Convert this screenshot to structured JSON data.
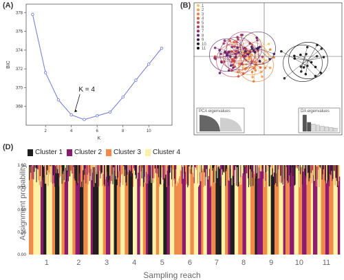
{
  "panels": {
    "a": "(A)",
    "b": "(B)",
    "d": "(D)"
  },
  "chart_data": [
    {
      "type": "line",
      "panel": "(A)",
      "xlabel": "K",
      "ylabel": "BIC",
      "x": [
        1,
        2,
        3,
        4,
        5,
        6,
        7,
        8,
        9,
        10,
        11
      ],
      "y": [
        377.8,
        371.6,
        368.7,
        367.1,
        366.6,
        367.0,
        367.4,
        369.0,
        370.8,
        372.5,
        374.2
      ],
      "xlim": [
        0.5,
        11.8
      ],
      "ylim": [
        366.0,
        378.9
      ],
      "xticks": [
        2,
        4,
        6,
        8,
        10
      ],
      "yticks": [
        368,
        370,
        372,
        374,
        376,
        378
      ],
      "annotation": "K = 4",
      "color": "#6b78d8"
    },
    {
      "type": "scatter",
      "panel": "(B)",
      "legend": [
        "1",
        "2",
        "3",
        "4",
        "5",
        "6",
        "7",
        "8",
        "9",
        "10",
        "11"
      ],
      "legend_colors": [
        "#f5c66a",
        "#f2a054",
        "#e8823d",
        "#dc5e35",
        "#c94a4a",
        "#b0385a",
        "#8c2a6e",
        "#60206c",
        "#3d1a55",
        "#202020",
        "#0a0a0a"
      ],
      "insets": {
        "pca_title": "PCA eigenvalues",
        "da_title": "DA eigenvalues"
      },
      "da_eigenvalues": [
        1.0,
        0.55,
        0.45,
        0.38,
        0.32,
        0.28,
        0.24,
        0.2
      ]
    },
    {
      "type": "bar",
      "panel": "(D)",
      "stacked": true,
      "series": [
        {
          "name": "Cluster 1",
          "color": "#1e1e1e"
        },
        {
          "name": "Cluster 2",
          "color": "#8c1a6e"
        },
        {
          "name": "Cluster 3",
          "color": "#f08a4b"
        },
        {
          "name": "Cluster 4",
          "color": "#fdf2a4"
        }
      ],
      "ylabel": "Assignment probability",
      "xlabel": "Sampling reach",
      "yticks": [
        "0.00",
        "0.25",
        "0.50",
        "0.75",
        "1.00"
      ],
      "reaches": [
        "1",
        "2",
        "3",
        "4",
        "5",
        "6",
        "7",
        "8",
        "9",
        "10",
        "11"
      ],
      "reach_blocks": [
        [
          [
            3,
            6
          ],
          [
            4,
            10
          ],
          [
            2,
            4
          ],
          [
            1,
            4
          ],
          [
            4,
            8
          ],
          [
            3,
            4
          ],
          [
            1,
            6
          ],
          [
            4,
            3
          ],
          [
            3,
            4
          ]
        ],
        [
          [
            2,
            5
          ],
          [
            4,
            6
          ],
          [
            3,
            4
          ],
          [
            2,
            6
          ],
          [
            1,
            5
          ],
          [
            3,
            6
          ],
          [
            4,
            4
          ],
          [
            2,
            3
          ]
        ],
        [
          [
            1,
            8
          ],
          [
            4,
            6
          ],
          [
            3,
            4
          ],
          [
            2,
            6
          ],
          [
            4,
            5
          ],
          [
            1,
            4
          ],
          [
            3,
            5
          ]
        ],
        [
          [
            4,
            6
          ],
          [
            3,
            5
          ],
          [
            1,
            6
          ],
          [
            4,
            6
          ],
          [
            2,
            4
          ],
          [
            4,
            4
          ],
          [
            3,
            4
          ],
          [
            2,
            3
          ]
        ],
        [
          [
            1,
            6
          ],
          [
            4,
            5
          ],
          [
            3,
            4
          ],
          [
            4,
            6
          ],
          [
            1,
            5
          ],
          [
            2,
            4
          ],
          [
            4,
            6
          ],
          [
            3,
            3
          ]
        ],
        [
          [
            3,
            8
          ],
          [
            2,
            5
          ],
          [
            4,
            6
          ],
          [
            3,
            5
          ],
          [
            4,
            6
          ],
          [
            2,
            4
          ],
          [
            3,
            3
          ]
        ],
        [
          [
            4,
            5
          ],
          [
            2,
            6
          ],
          [
            3,
            6
          ],
          [
            1,
            8
          ],
          [
            4,
            5
          ],
          [
            3,
            4
          ],
          [
            2,
            3
          ]
        ],
        [
          [
            1,
            6
          ],
          [
            4,
            5
          ],
          [
            3,
            6
          ],
          [
            2,
            5
          ],
          [
            4,
            6
          ],
          [
            3,
            6
          ],
          [
            1,
            3
          ]
        ],
        [
          [
            2,
            8
          ],
          [
            3,
            6
          ],
          [
            4,
            5
          ],
          [
            1,
            5
          ],
          [
            3,
            6
          ],
          [
            4,
            6
          ],
          [
            2,
            3
          ]
        ],
        [
          [
            3,
            6
          ],
          [
            2,
            6
          ],
          [
            4,
            6
          ],
          [
            3,
            5
          ],
          [
            2,
            6
          ],
          [
            3,
            6
          ],
          [
            4,
            3
          ]
        ],
        [
          [
            2,
            6
          ],
          [
            4,
            5
          ],
          [
            3,
            6
          ],
          [
            2,
            5
          ],
          [
            3,
            6
          ],
          [
            4,
            6
          ],
          [
            2,
            3
          ]
        ]
      ]
    }
  ]
}
